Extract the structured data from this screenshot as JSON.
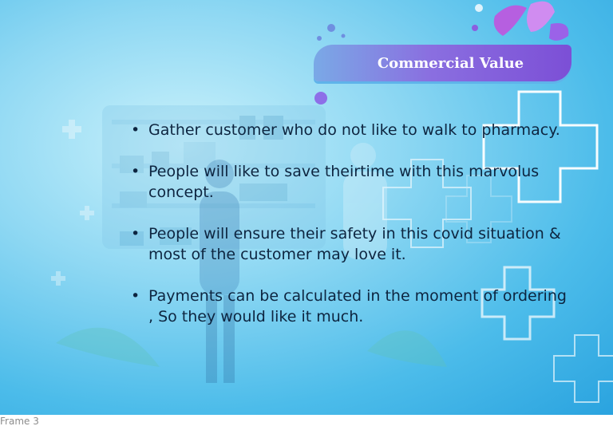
{
  "slide": {
    "title": "Commercial Value",
    "bullets": [
      "Gather customer who do not like to walk to pharmacy.",
      "People will like to save theirtime with this marvolus concept.",
      "People will ensure their safety in this covid situation & most of the customer may love it.",
      "Payments can be calculated in the moment of ordering , So they would like it much."
    ]
  },
  "canvas": {
    "frame_label": "Frame 3"
  },
  "colors": {
    "background": "#4cbcea",
    "title_pill_start": "#7aa9e6",
    "title_pill_end": "#7c4fd6",
    "text": "#0d2540"
  }
}
